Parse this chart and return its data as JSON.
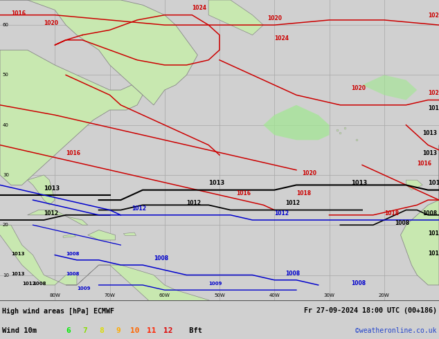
{
  "title_left": "High wind areas [hPa] ECMWF",
  "title_right": "Fr 27-09-2024 18:00 UTC (00+186)",
  "subtitle_label": "Wind 10m",
  "bft_values": [
    "6",
    "7",
    "8",
    "9",
    "10",
    "11",
    "12"
  ],
  "bft_colors": [
    "#00ee00",
    "#88dd00",
    "#dddd00",
    "#ffaa00",
    "#ff6600",
    "#ff2200",
    "#dd0000"
  ],
  "bft_suffix": " Bft",
  "copyright": "©weatheronline.co.uk",
  "bg_color": "#d0d0d0",
  "map_bg": "#c8c8c8",
  "ocean_color": "#d4d4d4",
  "land_color": "#c8e8b0",
  "land_color2": "#b0d898",
  "grid_color": "#aaaaaa",
  "contour_red": "#cc0000",
  "contour_black": "#000000",
  "contour_blue": "#0000cc",
  "coast_color": "#888888",
  "fig_width": 6.34,
  "fig_height": 4.9,
  "bottom_bar_color": "#ffffff",
  "lon_min": -90,
  "lon_max": -10,
  "lat_min": 5,
  "lat_max": 65,
  "grid_lons": [
    -80,
    -70,
    -60,
    -50,
    -40,
    -30,
    -20
  ],
  "grid_lats": [
    10,
    20,
    30,
    40,
    50,
    60
  ],
  "tick_lons": [
    -80,
    -70,
    -60,
    -50,
    -40,
    -30,
    -20,
    -10
  ],
  "tick_lats": [
    10,
    20,
    30,
    40,
    50,
    60
  ]
}
